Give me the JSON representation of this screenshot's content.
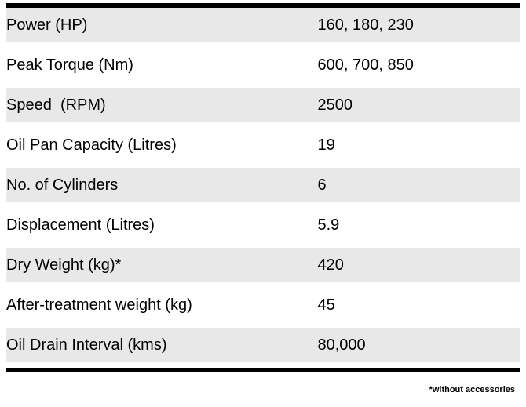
{
  "table": {
    "title": "engine-specifications",
    "row_shade_color": "#e8e8e8",
    "border_color": "#000000",
    "rows": [
      {
        "label": "Power (HP)",
        "value": "160, 180, 230"
      },
      {
        "label": "Peak Torque (Nm)",
        "value": "600, 700, 850"
      },
      {
        "label": "Speed  (RPM)",
        "value": "2500"
      },
      {
        "label": "Oil Pan Capacity (Litres)",
        "value": "19"
      },
      {
        "label": "No. of Cylinders",
        "value": "6"
      },
      {
        "label": "Displacement (Litres)",
        "value": "5.9"
      },
      {
        "label": "Dry Weight (kg)*",
        "value": "420"
      },
      {
        "label": "After-treatment weight (kg)",
        "value": "45"
      },
      {
        "label": "Oil Drain Interval (kms)",
        "value": "80,000"
      }
    ]
  },
  "footnote": "*without accessories"
}
